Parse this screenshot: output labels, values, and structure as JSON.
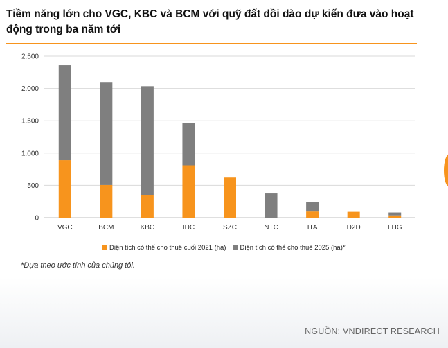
{
  "header": {
    "title": "Tiềm năng lớn cho VGC, KBC và BCM với quỹ đất dồi dào dự kiến đưa vào hoạt động trong ba năm tới"
  },
  "colors": {
    "accent": "#f7941d",
    "series_2021": "#f7941d",
    "series_2025": "#7f7f7f",
    "gridline": "#d9d9d9"
  },
  "chart_data": {
    "type": "bar",
    "stacked": true,
    "categories": [
      "VGC",
      "BCM",
      "KBC",
      "IDC",
      "SZC",
      "NTC",
      "ITA",
      "D2D",
      "LHG"
    ],
    "series": [
      {
        "name": "Diện tích có thể cho thuê cuối 2021 (ha)",
        "color": "#f7941d",
        "values": [
          890,
          505,
          350,
          810,
          620,
          0,
          95,
          90,
          35
        ]
      },
      {
        "name": "Diện tích có thể cho thuê 2025 (ha)*",
        "color": "#7f7f7f",
        "values": [
          1470,
          1585,
          1685,
          655,
          0,
          375,
          145,
          0,
          45
        ]
      }
    ],
    "ylim": [
      0,
      2500
    ],
    "yticks": [
      0,
      500,
      1000,
      1500,
      2000,
      2500
    ],
    "ytick_labels": [
      "0",
      "500",
      "1.000",
      "1.500",
      "2.000",
      "2.500"
    ],
    "grid": true,
    "legend": "bottom",
    "xlabel": "",
    "ylabel": ""
  },
  "footnote": "*Dựa theo ước tính của chúng tôi.",
  "source": "NGUỒN: VNDIRECT RESEARCH"
}
